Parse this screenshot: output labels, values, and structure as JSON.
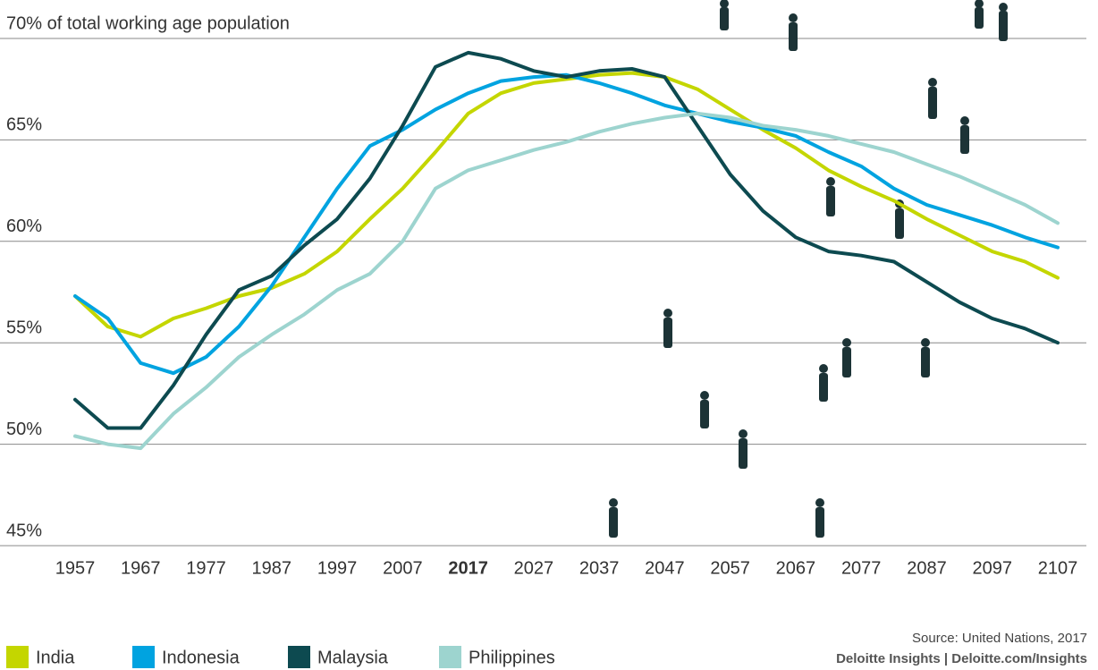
{
  "chart_data": {
    "type": "line",
    "x": [
      1957,
      1962,
      1967,
      1972,
      1977,
      1982,
      1987,
      1992,
      1997,
      2002,
      2007,
      2012,
      2017,
      2022,
      2027,
      2032,
      2037,
      2042,
      2047,
      2052,
      2057,
      2062,
      2067,
      2072,
      2077,
      2082,
      2087,
      2092,
      2097,
      2102,
      2107
    ],
    "xlim": [
      1957,
      2107
    ],
    "xticks": [
      1957,
      1967,
      1977,
      1987,
      1997,
      2007,
      2017,
      2027,
      2037,
      2047,
      2057,
      2067,
      2077,
      2087,
      2097,
      2107
    ],
    "highlight_x": 2017,
    "ylim": [
      45,
      70
    ],
    "yticks": [
      {
        "value": 45,
        "label": "45%"
      },
      {
        "value": 50,
        "label": "50%"
      },
      {
        "value": 55,
        "label": "55%"
      },
      {
        "value": 60,
        "label": "60%"
      },
      {
        "value": 65,
        "label": "65%"
      },
      {
        "value": 70,
        "label": "70% of total working age population"
      }
    ],
    "grid": true,
    "series": [
      {
        "name": "India",
        "color": "#c4d600",
        "values": [
          57.3,
          55.8,
          55.3,
          56.2,
          56.7,
          57.3,
          57.7,
          58.4,
          59.5,
          61.1,
          62.6,
          64.4,
          66.3,
          67.3,
          67.8,
          68.0,
          68.2,
          68.3,
          68.1,
          67.5,
          66.5,
          65.5,
          64.6,
          63.5,
          62.7,
          62.0,
          61.1,
          60.3,
          59.5,
          59.0,
          58.2
        ]
      },
      {
        "name": "Indonesia",
        "color": "#00a3e0",
        "values": [
          57.3,
          56.2,
          54.0,
          53.5,
          54.3,
          55.8,
          57.8,
          60.2,
          62.6,
          64.7,
          65.5,
          66.5,
          67.3,
          67.9,
          68.1,
          68.2,
          67.8,
          67.3,
          66.7,
          66.3,
          65.9,
          65.6,
          65.2,
          64.4,
          63.7,
          62.6,
          61.8,
          61.3,
          60.8,
          60.2,
          59.7
        ]
      },
      {
        "name": "Malaysia",
        "color": "#0d4a50",
        "values": [
          52.2,
          50.8,
          50.8,
          52.9,
          55.4,
          57.6,
          58.3,
          59.8,
          61.1,
          63.1,
          65.7,
          68.6,
          69.3,
          69.0,
          68.4,
          68.1,
          68.4,
          68.5,
          68.1,
          65.7,
          63.3,
          61.5,
          60.2,
          59.5,
          59.3,
          59.0,
          58.0,
          57.0,
          56.2,
          55.7,
          55.0
        ]
      },
      {
        "name": "Philippines",
        "color": "#9dd4cf",
        "values": [
          50.4,
          50.0,
          49.8,
          51.5,
          52.8,
          54.3,
          55.4,
          56.4,
          57.6,
          58.4,
          60.0,
          62.6,
          63.5,
          64.0,
          64.5,
          64.9,
          65.4,
          65.8,
          66.1,
          66.3,
          66.1,
          65.7,
          65.5,
          65.2,
          64.8,
          64.4,
          63.8,
          63.2,
          62.5,
          61.8,
          60.9
        ]
      }
    ],
    "source": "Source: United Nations, 2017",
    "brand": "Deloitte Insights | Deloitte.com/Insights"
  }
}
